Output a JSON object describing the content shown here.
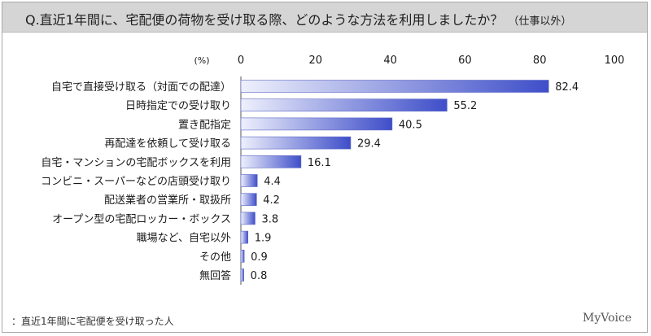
{
  "title": "Q.直近1年間に、宅配便の荷物を受け取る際、どのような方法を利用しましたか？",
  "title_note": "（仕事以外）",
  "footer_note": "：直近1年間に宅配便を受け取った人",
  "brand": "MyVoice",
  "colors": {
    "bar_start": "#eef0fc",
    "bar_end": "#3e4ec9",
    "bar_stroke": "#5b67c4"
  },
  "chart_data": {
    "type": "bar",
    "orientation": "horizontal",
    "unit_label": "(%)",
    "xlim": [
      0,
      100
    ],
    "ticks": [
      "0",
      "20",
      "40",
      "60",
      "80",
      "100"
    ],
    "categories": [
      "自宅で直接受け取る（対面での配達）",
      "日時指定での受け取り",
      "置き配指定",
      "再配達を依頼して受け取る",
      "自宅・マンションの宅配ボックスを利用",
      "コンビニ・スーパーなどの店頭受け取り",
      "配送業者の営業所・取扱所",
      "オープン型の宅配ロッカー・ボックス",
      "職場など、自宅以外",
      "その他",
      "無回答"
    ],
    "values": [
      82.4,
      55.2,
      40.5,
      29.4,
      16.1,
      4.4,
      4.2,
      3.8,
      1.9,
      0.9,
      0.8
    ],
    "value_labels": [
      "82.4",
      "55.2",
      "40.5",
      "29.4",
      "16.1",
      "4.4",
      "4.2",
      "3.8",
      "1.9",
      "0.9",
      "0.8"
    ],
    "grid": false
  }
}
